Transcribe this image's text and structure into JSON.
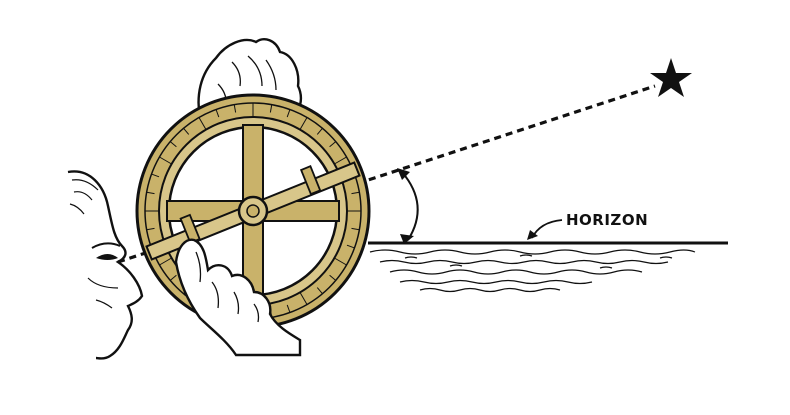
{
  "diagram": {
    "labels": {
      "horizon": "HORIZON"
    },
    "colors": {
      "line": "#111111",
      "astrolabe_fill": "#c9b26a",
      "astrolabe_light": "#d8c68a",
      "background": "#ffffff"
    },
    "icons": {
      "star": "star-icon"
    }
  }
}
